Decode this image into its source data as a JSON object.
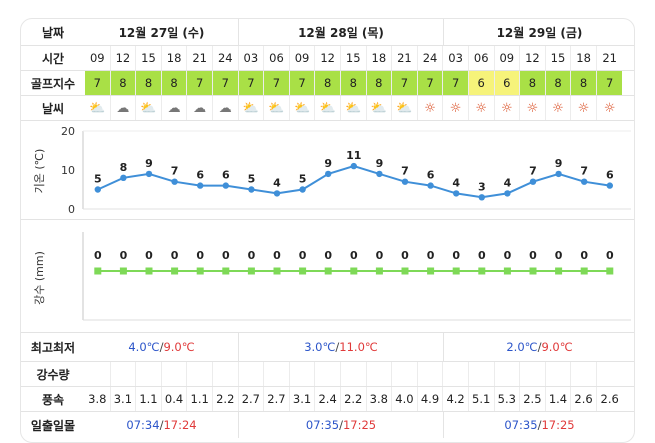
{
  "labels": {
    "date": "날짜",
    "time": "시간",
    "golf_index": "골프지수",
    "weather": "날씨",
    "minmax": "최고최저",
    "precip": "강수량",
    "wind": "풍속",
    "sun": "일출일몰",
    "temp_axis": "기온 (℃)",
    "rain_axis": "강수 (mm)"
  },
  "days": [
    {
      "label": "12월 27일 (수)",
      "min": "4.0℃",
      "sep": "/",
      "max": "9.0℃",
      "sunrise": "07:34",
      "sunset": "17:24"
    },
    {
      "label": "12월 28일 (목)",
      "min": "3.0℃",
      "sep": "/",
      "max": "11.0℃",
      "sunrise": "07:35",
      "sunset": "17:25"
    },
    {
      "label": "12월 29일 (금)",
      "min": "2.0℃",
      "sep": "/",
      "max": "9.0℃",
      "sunrise": "07:35",
      "sunset": "17:25"
    }
  ],
  "times": [
    "09",
    "12",
    "15",
    "18",
    "21",
    "24",
    "03",
    "06",
    "09",
    "12",
    "15",
    "18",
    "21",
    "24",
    "03",
    "06",
    "09",
    "12",
    "15",
    "18",
    "21"
  ],
  "golf_index": [
    {
      "v": "7",
      "c": "green"
    },
    {
      "v": "8",
      "c": "green"
    },
    {
      "v": "8",
      "c": "green"
    },
    {
      "v": "8",
      "c": "green"
    },
    {
      "v": "7",
      "c": "green"
    },
    {
      "v": "7",
      "c": "green"
    },
    {
      "v": "7",
      "c": "green"
    },
    {
      "v": "7",
      "c": "green"
    },
    {
      "v": "7",
      "c": "green"
    },
    {
      "v": "8",
      "c": "green"
    },
    {
      "v": "8",
      "c": "green"
    },
    {
      "v": "8",
      "c": "green"
    },
    {
      "v": "7",
      "c": "green"
    },
    {
      "v": "7",
      "c": "green"
    },
    {
      "v": "7",
      "c": "green"
    },
    {
      "v": "6",
      "c": "yellow"
    },
    {
      "v": "6",
      "c": "yellow"
    },
    {
      "v": "8",
      "c": "green"
    },
    {
      "v": "8",
      "c": "green"
    },
    {
      "v": "8",
      "c": "green"
    },
    {
      "v": "7",
      "c": "green"
    }
  ],
  "weather_icons": [
    "partly-cloudy-icon",
    "cloudy-icon",
    "partly-cloudy-icon",
    "cloudy-icon",
    "cloudy-icon",
    "cloudy-icon",
    "partly-cloudy-icon",
    "partly-cloudy-icon",
    "partly-cloudy-icon",
    "partly-cloudy-icon",
    "partly-cloudy-icon",
    "partly-cloudy-icon",
    "partly-cloudy-icon",
    "sun-icon",
    "sun-icon",
    "sun-icon",
    "sun-icon",
    "sun-icon",
    "sun-icon",
    "sun-icon",
    "sun-icon"
  ],
  "wind": [
    "3.8",
    "3.1",
    "1.1",
    "0.4",
    "1.1",
    "2.2",
    "2.7",
    "2.7",
    "3.1",
    "2.4",
    "2.2",
    "3.8",
    "4.0",
    "4.9",
    "4.2",
    "5.1",
    "5.3",
    "2.5",
    "1.4",
    "2.6",
    "2.6"
  ],
  "colors": {
    "line": "#3f8fd8",
    "rain": "#7ed957",
    "min": "#2c55c9",
    "max": "#e03a3a",
    "green": "#a9e046",
    "yellow": "#f6f37a",
    "sun": "#d94a1f"
  },
  "chart_data": [
    {
      "type": "line",
      "ylabel": "기온 (℃)",
      "ylim": [
        0,
        20
      ],
      "yticks": [
        "0",
        "10",
        "20"
      ],
      "x": [
        "09",
        "12",
        "15",
        "18",
        "21",
        "24",
        "03",
        "06",
        "09",
        "12",
        "15",
        "18",
        "21",
        "24",
        "03",
        "06",
        "09",
        "12",
        "15",
        "18",
        "21"
      ],
      "values": [
        5,
        8,
        9,
        7,
        6,
        6,
        5,
        4,
        5,
        9,
        11,
        9,
        7,
        6,
        4,
        3,
        4,
        7,
        9,
        7,
        6
      ],
      "grid": false
    },
    {
      "type": "line",
      "ylabel": "강수 (mm)",
      "x": [
        "09",
        "12",
        "15",
        "18",
        "21",
        "24",
        "03",
        "06",
        "09",
        "12",
        "15",
        "18",
        "21",
        "24",
        "03",
        "06",
        "09",
        "12",
        "15",
        "18",
        "21"
      ],
      "values": [
        0,
        0,
        0,
        0,
        0,
        0,
        0,
        0,
        0,
        0,
        0,
        0,
        0,
        0,
        0,
        0,
        0,
        0,
        0,
        0,
        0
      ],
      "grid": false
    }
  ]
}
